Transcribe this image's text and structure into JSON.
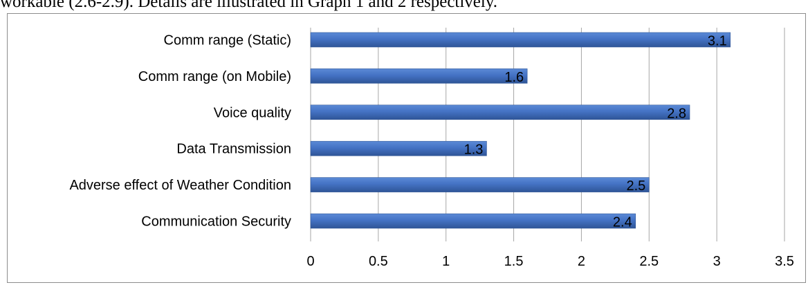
{
  "caption": {
    "text": "workable (2.6-2.9). Details are illustrated in Graph 1 and 2 respectively."
  },
  "chart_data": {
    "type": "bar",
    "orientation": "horizontal",
    "categories": [
      "Comm range (Static)",
      "Comm range (on Mobile)",
      "Voice quality",
      "Data Transmission",
      "Adverse effect of Weather Condition",
      "Communication Security"
    ],
    "values": [
      3.1,
      1.6,
      2.8,
      1.3,
      2.5,
      2.4
    ],
    "data_labels": [
      "3.1",
      "1.6",
      "2.8",
      "1.3",
      "2.5",
      "2.4"
    ],
    "xlim": [
      0,
      3.5
    ],
    "xticks": [
      "0",
      "0.5",
      "1",
      "1.5",
      "2",
      "2.5",
      "3",
      "3.5"
    ],
    "xtick_values": [
      0,
      0.5,
      1,
      1.5,
      2,
      2.5,
      3,
      3.5
    ],
    "grid": "vertical",
    "legend": "none",
    "bar_color": "#4472c4",
    "bar_color_dark": "#2f5597",
    "bar_color_light": "#5b8ad6"
  }
}
